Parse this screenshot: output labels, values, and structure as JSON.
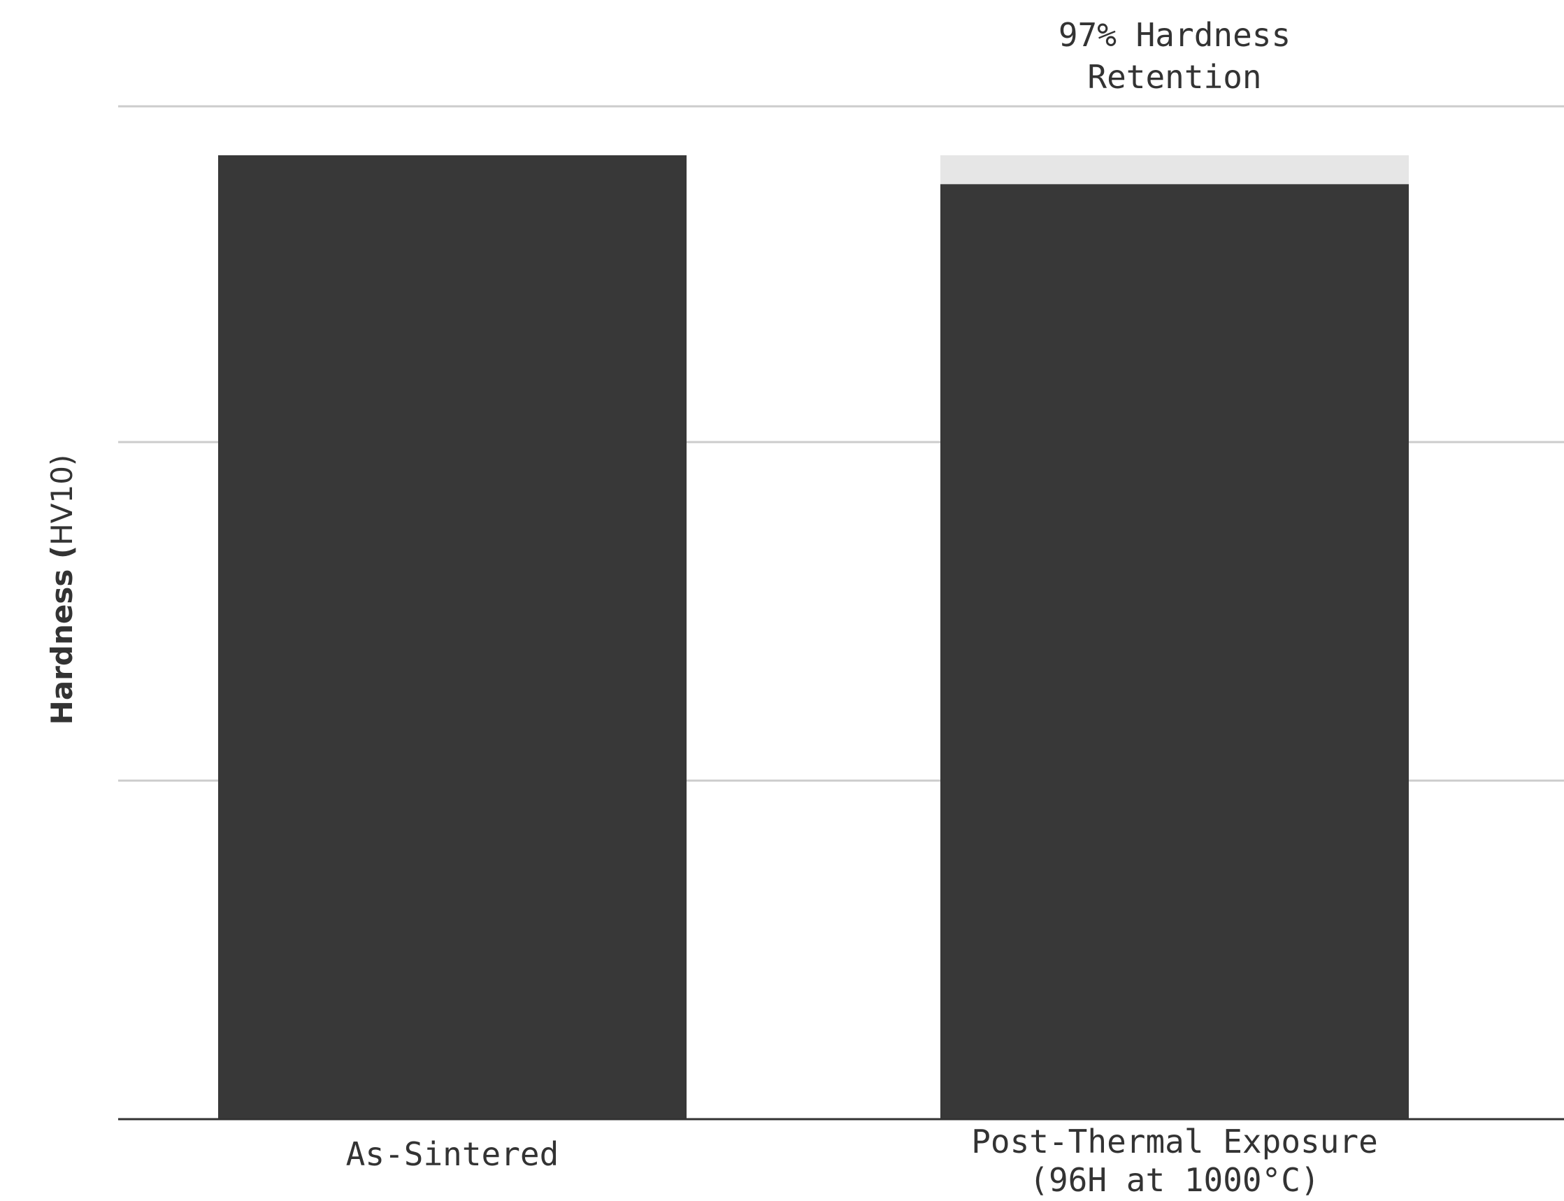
{
  "chart_data": {
    "type": "bar",
    "categories": [
      [
        "As-Sintered"
      ],
      [
        "Post-Thermal Exposure",
        "(96H at 1000°C)"
      ]
    ],
    "series": [
      {
        "values": [
          100,
          97
        ]
      }
    ],
    "reference_value": 100,
    "ylabel_bold": "Hardness (",
    "ylabel_unit": "HV10)",
    "ylim": [
      0,
      100
    ],
    "gridlines": [
      100,
      65,
      30
    ],
    "grid": true,
    "annotation": {
      "category_index": 1,
      "lines": [
        "97% Hardness",
        "Retention"
      ]
    },
    "colors": {
      "bar": "#383838",
      "reference": "#e6e6e6",
      "grid": "#cccccc",
      "axis": "#333333",
      "text": "#333333"
    }
  }
}
